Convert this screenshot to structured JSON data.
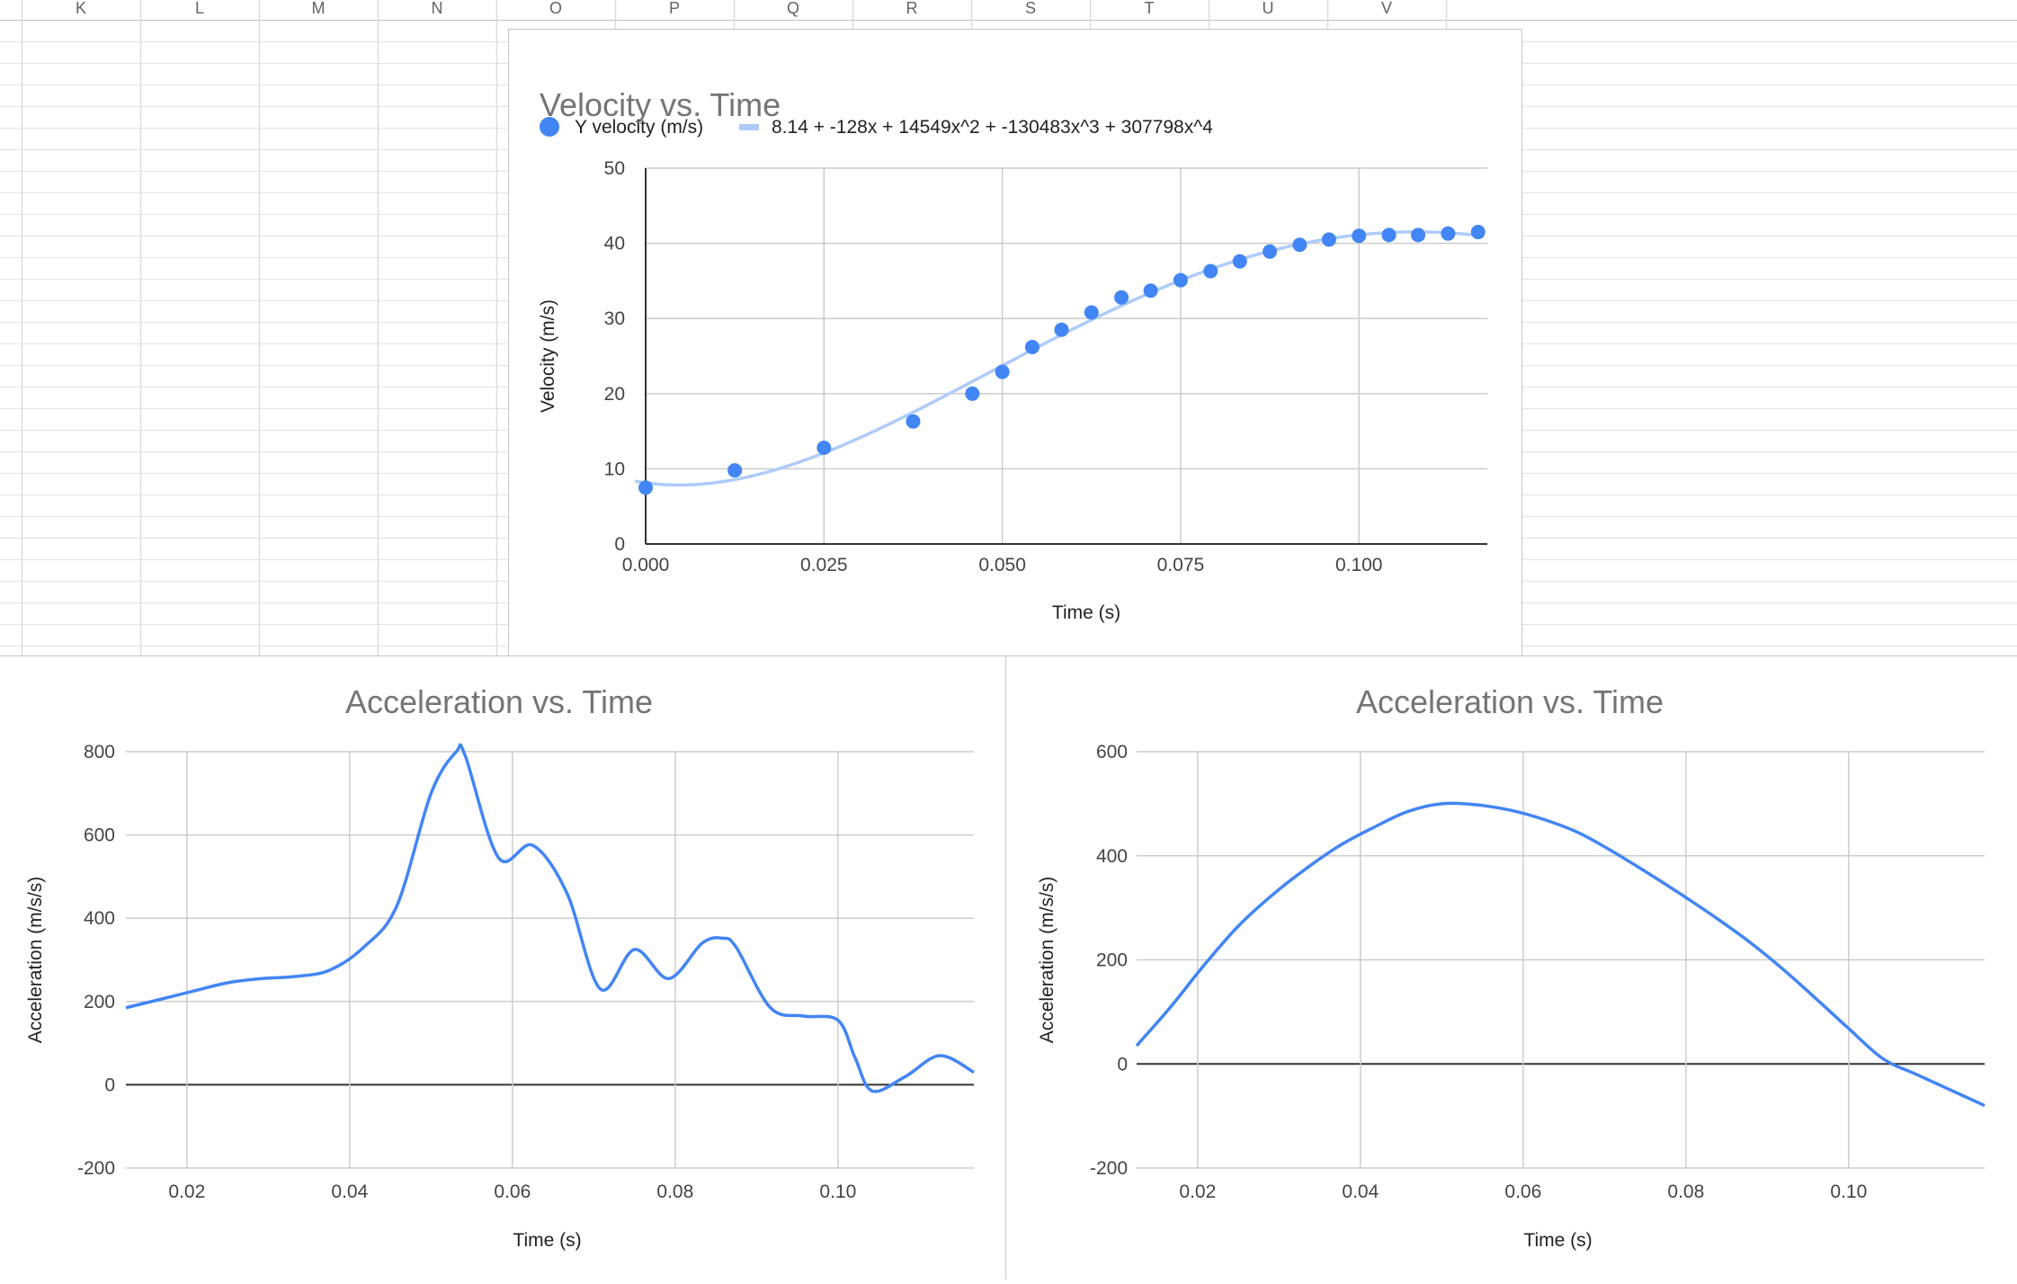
{
  "sheet": {
    "columns": [
      "K",
      "L",
      "M",
      "N",
      "O",
      "P",
      "Q",
      "R",
      "S",
      "T",
      "U",
      "V"
    ]
  },
  "chart_data": [
    {
      "type": "scatter",
      "title": "Velocity vs. Time",
      "xlabel": "Time (s)",
      "ylabel": "Velocity (m/s)",
      "xlim": [
        0,
        0.118
      ],
      "ylim": [
        0,
        50
      ],
      "x_ticks": [
        "0.000",
        "0.025",
        "0.050",
        "0.075",
        "0.100"
      ],
      "y_ticks": [
        "0",
        "10",
        "20",
        "30",
        "40",
        "50"
      ],
      "grid": true,
      "legend": "top",
      "series": [
        {
          "name": "Y velocity (m/s)",
          "color": "#4285f4",
          "x": [
            0.0,
            0.0125,
            0.025,
            0.0375,
            0.0458,
            0.05,
            0.0542,
            0.0583,
            0.0625,
            0.0667,
            0.0708,
            0.075,
            0.0792,
            0.0833,
            0.0875,
            0.0917,
            0.0958,
            0.1,
            0.1042,
            0.1083,
            0.1125,
            0.1167
          ],
          "y": [
            7.5,
            9.8,
            12.8,
            16.3,
            20.0,
            22.9,
            26.2,
            28.5,
            30.8,
            32.8,
            33.7,
            35.1,
            36.3,
            37.6,
            38.9,
            39.8,
            40.5,
            41.0,
            41.1,
            41.1,
            41.3,
            41.5
          ]
        },
        {
          "name": "8.14 + -128x + 14549x^2 + -130483x^3 + 307798x^4",
          "color": "#aecbfa",
          "coefficients": [
            8.14,
            -128,
            14549,
            -130483,
            307798
          ],
          "x_range": [
            -0.0015,
            0.1175
          ]
        }
      ]
    },
    {
      "type": "line",
      "title": "Acceleration vs. Time",
      "xlabel": "Time (s)",
      "ylabel": "Acceleration (m/s/s)",
      "xlim": [
        0.0125,
        0.1167
      ],
      "ylim": [
        -200,
        800
      ],
      "x_ticks": [
        "0.02",
        "0.04",
        "0.06",
        "0.08",
        "0.10"
      ],
      "y_ticks": [
        "-200",
        "0",
        "200",
        "400",
        "600",
        "800"
      ],
      "grid": true,
      "series": [
        {
          "color": "#4285f4",
          "x": [
            0.0125,
            0.0167,
            0.0208,
            0.025,
            0.0292,
            0.0333,
            0.0375,
            0.0417,
            0.0458,
            0.05,
            0.0531,
            0.0542,
            0.0583,
            0.0625,
            0.0667,
            0.0708,
            0.075,
            0.0792,
            0.0833,
            0.0858,
            0.0875,
            0.0917,
            0.0958,
            0.1,
            0.1021,
            0.1042,
            0.1083,
            0.1125,
            0.1167
          ],
          "y": [
            185,
            205,
            225,
            245,
            255,
            260,
            275,
            330,
            430,
            700,
            800,
            790,
            545,
            575,
            460,
            230,
            325,
            255,
            340,
            352,
            330,
            185,
            165,
            155,
            65,
            -15,
            20,
            70,
            30
          ]
        }
      ]
    },
    {
      "type": "line",
      "title": "Acceleration vs. Time",
      "xlabel": "Time (s)",
      "ylabel": "Acceleration (m/s/s)",
      "xlim": [
        0.0125,
        0.1167
      ],
      "ylim": [
        -200,
        600
      ],
      "x_ticks": [
        "0.02",
        "0.04",
        "0.06",
        "0.08",
        "0.10"
      ],
      "y_ticks": [
        "-200",
        "0",
        "200",
        "400",
        "600"
      ],
      "grid": true,
      "series": [
        {
          "color": "#4285f4",
          "x": [
            0.0125,
            0.0167,
            0.0208,
            0.025,
            0.0292,
            0.0333,
            0.0375,
            0.0417,
            0.0458,
            0.05,
            0.0542,
            0.0583,
            0.0625,
            0.0667,
            0.0708,
            0.075,
            0.0792,
            0.0833,
            0.0875,
            0.0917,
            0.0958,
            0.1,
            0.1042,
            0.1083,
            0.1125,
            0.1167
          ],
          "y": [
            35,
            110,
            190,
            265,
            325,
            375,
            420,
            455,
            485,
            500,
            498,
            488,
            470,
            445,
            410,
            370,
            328,
            285,
            238,
            185,
            128,
            68,
            10,
            -20,
            -50,
            -80
          ]
        }
      ]
    }
  ]
}
